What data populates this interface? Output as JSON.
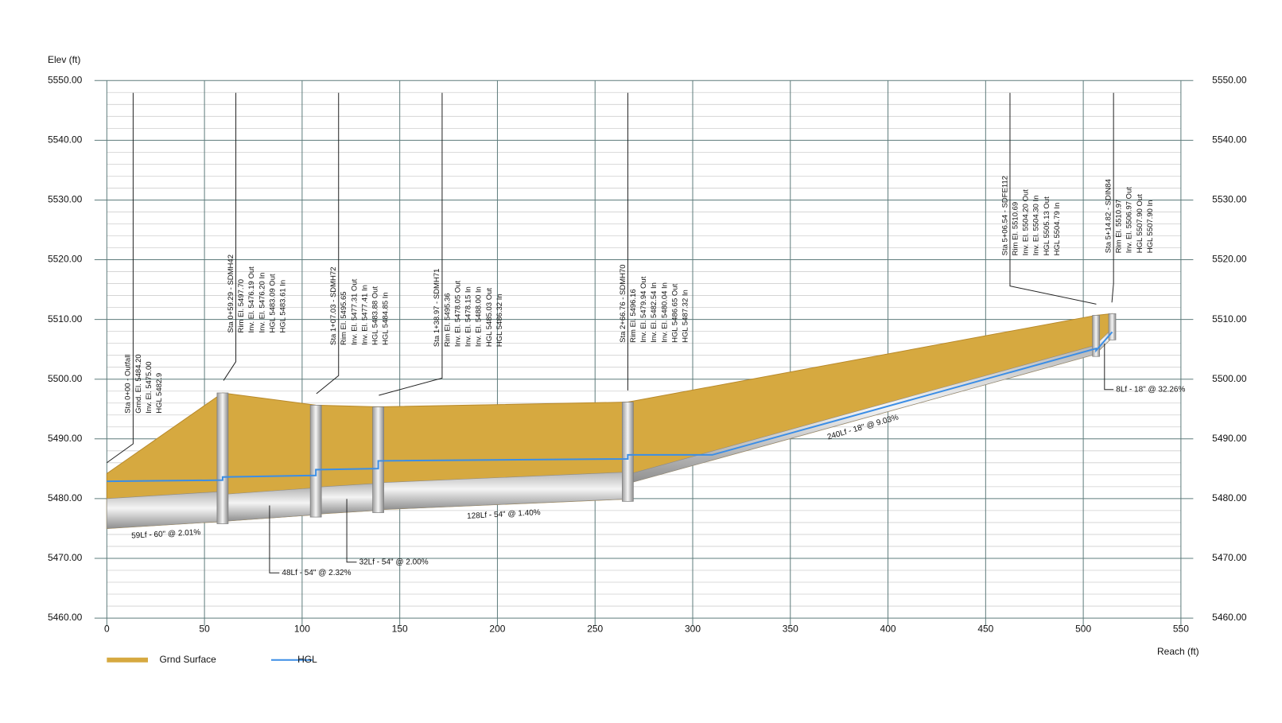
{
  "chart_data": {
    "type": "profile",
    "y_axis_label": "Elev (ft)",
    "x_axis_label": "Reach (ft)",
    "xlim": [
      0,
      550
    ],
    "xticks": [
      0,
      50,
      100,
      150,
      200,
      250,
      300,
      350,
      400,
      450,
      500,
      550
    ],
    "ylim": [
      5460,
      5550
    ],
    "yticks": [
      {
        "value": 5460,
        "label": "5460.00"
      },
      {
        "value": 5470,
        "label": "5470.00"
      },
      {
        "value": 5480,
        "label": "5480.00"
      },
      {
        "value": 5490,
        "label": "5490.00"
      },
      {
        "value": 5500,
        "label": "5500.00"
      },
      {
        "value": 5510,
        "label": "5510.00"
      },
      {
        "value": 5520,
        "label": "5520.00"
      },
      {
        "value": 5530,
        "label": "5530.00"
      },
      {
        "value": 5540,
        "label": "5540.00"
      },
      {
        "value": 5550,
        "label": "5550.00"
      }
    ],
    "grid": true,
    "series": [
      {
        "name": "Grnd Surface",
        "color": "#d6a940",
        "x": [
          0,
          59.29,
          107.03,
          138.97,
          266.76,
          506.54,
          514.82
        ],
        "values": [
          5484.2,
          5497.7,
          5495.65,
          5495.36,
          5496.16,
          5510.69,
          5510.97
        ]
      },
      {
        "name": "HGL",
        "color": "#3b8ee6",
        "x": [
          0,
          59.29,
          59.29,
          107.03,
          107.03,
          138.97,
          138.97,
          266.76,
          266.76,
          310,
          506.54,
          506.54,
          514.82
        ],
        "values": [
          5482.9,
          5483.09,
          5483.61,
          5483.88,
          5484.85,
          5485.03,
          5486.32,
          5486.65,
          5487.32,
          5487.32,
          5505.13,
          5504.79,
          5507.9
        ]
      }
    ],
    "pipes": [
      {
        "label": "59Lf - 60\" @ 2.01%",
        "x": [
          0,
          59.29
        ],
        "inverts": [
          5475.0,
          5476.19
        ],
        "rise": 5
      },
      {
        "label": "48Lf - 54\" @ 2.32%",
        "x": [
          59.29,
          107.03
        ],
        "inverts": [
          5476.2,
          5477.31
        ],
        "rise": 4.5
      },
      {
        "label": "32Lf - 54\" @ 2.00%",
        "x": [
          107.03,
          138.97
        ],
        "inverts": [
          5477.41,
          5478.05
        ],
        "rise": 4.5
      },
      {
        "label": "128Lf - 54\" @ 1.40%",
        "x": [
          138.97,
          266.76
        ],
        "inverts": [
          5478.15,
          5479.94
        ],
        "rise": 4.5
      },
      {
        "label": "240Lf - 18\" @ 9.03%",
        "x": [
          266.76,
          506.54
        ],
        "inverts": [
          5482.54,
          5504.2
        ],
        "rise": 1.5
      },
      {
        "label": "8Lf - 18\" @ 32.26%",
        "x": [
          506.54,
          514.82
        ],
        "inverts": [
          5504.3,
          5506.97
        ],
        "rise": 1.5
      }
    ],
    "structures": [
      {
        "x": 0,
        "lines": [
          "Sta 0+00 - Outfall",
          "Grnd. El. 5484.20",
          "Inv. El. 5475.00",
          "HGL 5482.9"
        ]
      },
      {
        "x": 59.29,
        "rim": 5497.7,
        "bottom": 5476.19,
        "lines": [
          "Sta 0+59.29 - SDMH42",
          "Rim El. 5497.70",
          "Inv. El. 5476.19 Out",
          "Inv. El. 5476.20 In",
          "HGL 5483.09 Out",
          "HGL 5483.61 In"
        ]
      },
      {
        "x": 107.03,
        "rim": 5495.65,
        "bottom": 5477.31,
        "lines": [
          "Sta 1+07.03 - SDMH72",
          "Rim El. 5495.65",
          "Inv. El. 5477.31 Out",
          "Inv. El. 5477.41 In",
          "HGL 5483.88 Out",
          "HGL 5484.85 In"
        ]
      },
      {
        "x": 138.97,
        "rim": 5495.36,
        "bottom": 5478.05,
        "lines": [
          "Sta 1+38.97 - SDMH71",
          "Rim El. 5495.36",
          "Inv. El. 5478.05 Out",
          "Inv. El. 5478.15 In",
          "Inv. El. 5488.00 In",
          "HGL 5485.03 Out",
          "HGL 5486.32 In"
        ]
      },
      {
        "x": 266.76,
        "rim": 5496.16,
        "bottom": 5479.94,
        "lines": [
          "Sta 2+66.76 - SDMH70",
          "Rim El. 5496.16",
          "Inv. El. 5479.94 Out",
          "Inv. El. 5482.54 In",
          "Inv. El. 5480.04 In",
          "HGL 5486.65 Out",
          "HGL 5487.32 In"
        ]
      },
      {
        "x": 506.54,
        "rim": 5510.69,
        "bottom": 5504.2,
        "lines": [
          "Sta 5+06.54 - SDFE112",
          "Rim El. 5510.69",
          "Inv. El. 5504.20 Out",
          "Inv. El. 5504.30 In",
          "HGL 5505.13 Out",
          "HGL 5504.79 In"
        ]
      },
      {
        "x": 514.82,
        "rim": 5510.97,
        "bottom": 5506.97,
        "lines": [
          "Sta 5+14.82 - SDIN84",
          "Rim El. 5510.97",
          "Inv. El. 5506.97 Out",
          "HGL 5507.90 Out",
          "HGL 5507.90 In"
        ]
      }
    ]
  }
}
